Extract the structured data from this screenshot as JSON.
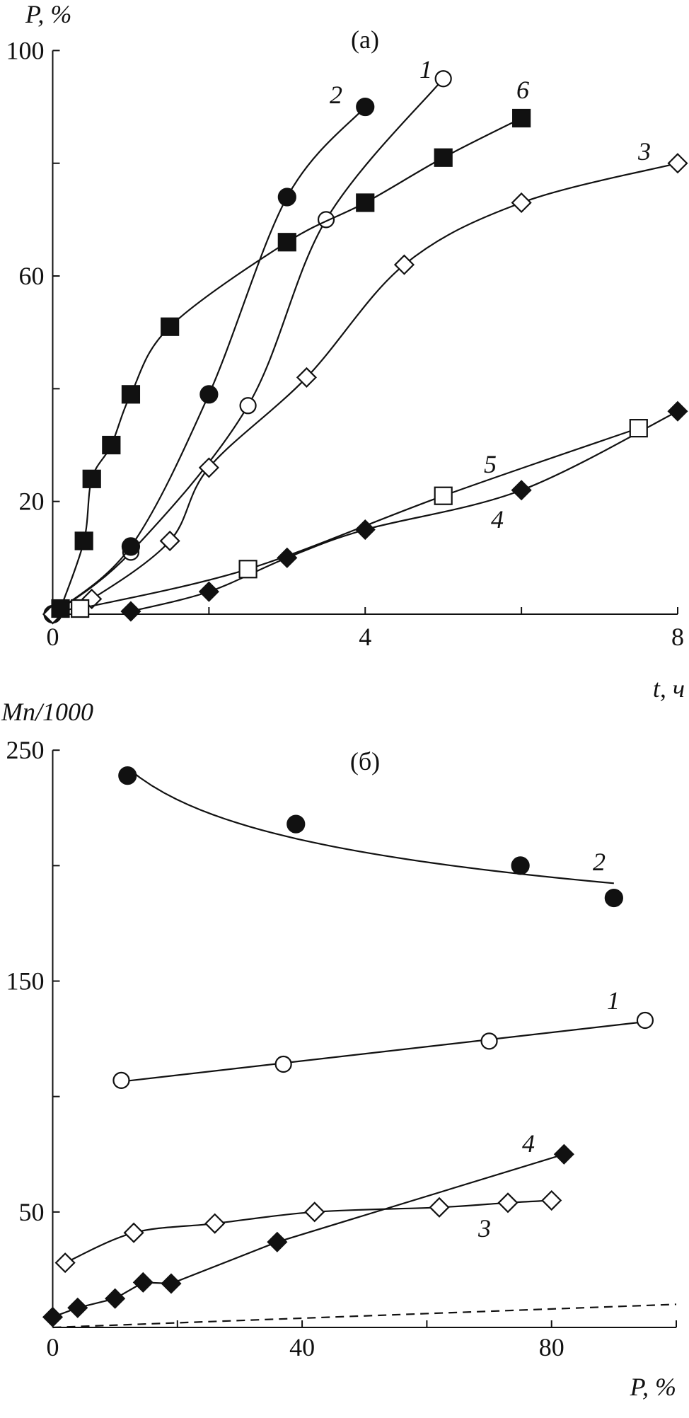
{
  "chart_data": [
    {
      "type": "line",
      "panel_title": "(a)",
      "ylabel": "P, %",
      "xlabel": "t, ч",
      "xlim": [
        0,
        8
      ],
      "ylim": [
        0,
        100
      ],
      "x_ticks": [
        0,
        2,
        4,
        6,
        8
      ],
      "x_tick_labels": [
        "0",
        "4",
        "8"
      ],
      "y_ticks": [
        20,
        40,
        60,
        80,
        100
      ],
      "y_tick_labels": [
        "20",
        "60",
        "100"
      ],
      "grid": false,
      "series": [
        {
          "label": "1",
          "marker": "open-circle",
          "x": [
            0,
            1,
            2.5,
            3.5,
            5
          ],
          "y": [
            0,
            11,
            37,
            70,
            95
          ]
        },
        {
          "label": "2",
          "marker": "filled-circle",
          "x": [
            0,
            1,
            2,
            3,
            4
          ],
          "y": [
            0,
            12,
            39,
            74,
            90
          ]
        },
        {
          "label": "3",
          "marker": "open-diamond",
          "x": [
            0,
            0.5,
            1.5,
            2,
            3.25,
            4.5,
            6,
            8
          ],
          "y": [
            0,
            2.7,
            13,
            26,
            42,
            62,
            73,
            80
          ]
        },
        {
          "label": "4",
          "marker": "filled-diamond",
          "x": [
            1,
            2,
            3,
            4,
            6,
            8
          ],
          "y": [
            0.5,
            4,
            10,
            15,
            22,
            36
          ]
        },
        {
          "label": "5",
          "marker": "open-square",
          "x": [
            0.35,
            2.5,
            5,
            7.5
          ],
          "y": [
            1,
            8,
            21,
            33
          ]
        },
        {
          "label": "6",
          "marker": "filled-square",
          "x": [
            0.1,
            0.4,
            0.5,
            0.75,
            1,
            1.5,
            3,
            4,
            5,
            6
          ],
          "y": [
            1,
            13,
            24,
            30,
            39,
            51,
            66,
            73,
            81,
            88
          ]
        }
      ]
    },
    {
      "type": "line",
      "panel_title": "(б)",
      "ylabel": "Mn/1000",
      "xlabel": "P, %",
      "xlim": [
        0,
        100
      ],
      "ylim": [
        0,
        250
      ],
      "x_ticks": [
        0,
        20,
        40,
        60,
        80,
        100
      ],
      "x_tick_labels": [
        "0",
        "40",
        "80"
      ],
      "y_ticks": [
        50,
        100,
        150,
        200,
        250
      ],
      "y_tick_labels": [
        "50",
        "150",
        "250"
      ],
      "grid": false,
      "series": [
        {
          "label": "1",
          "marker": "open-circle",
          "fit": "linear",
          "x": [
            11,
            37,
            70,
            95
          ],
          "y": [
            107,
            114,
            124,
            133
          ]
        },
        {
          "label": "2",
          "marker": "filled-circle",
          "fit": "power",
          "x": [
            12,
            39,
            75,
            90
          ],
          "y": [
            239,
            218,
            200,
            186
          ]
        },
        {
          "label": "3",
          "marker": "open-diamond",
          "fit": "smooth",
          "x": [
            2,
            13,
            26,
            42,
            62,
            73,
            80
          ],
          "y": [
            28,
            41,
            45,
            50,
            52,
            54,
            55
          ]
        },
        {
          "label": "4",
          "marker": "filled-diamond",
          "fit": "polyline",
          "x": [
            0,
            4,
            10,
            14.5,
            19,
            36,
            82
          ],
          "y": [
            4.5,
            8.5,
            12.5,
            19.5,
            19,
            37,
            75
          ]
        },
        {
          "label": "",
          "marker": "none",
          "style": "dashed",
          "x": [
            0,
            100
          ],
          "y": [
            0,
            10
          ]
        }
      ]
    }
  ]
}
